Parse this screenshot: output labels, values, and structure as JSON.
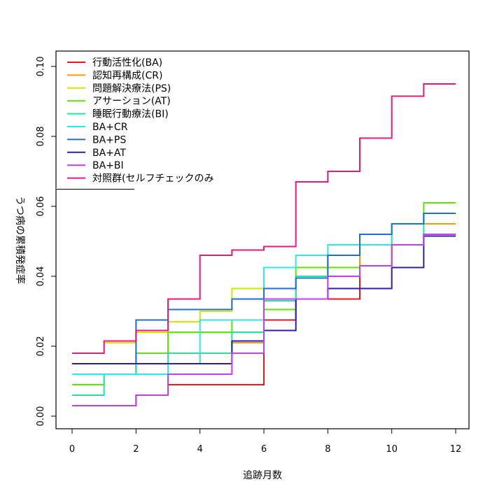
{
  "chart_data": {
    "type": "line",
    "step": true,
    "xlabel": "追跡月数",
    "ylabel": "うつ病の累積発症率",
    "xlim": [
      0,
      12
    ],
    "ylim": [
      0,
      0.1
    ],
    "xticks": [
      0,
      2,
      4,
      6,
      8,
      10,
      12
    ],
    "yticks": [
      "0.00",
      "0.02",
      "0.04",
      "0.06",
      "0.08",
      "0.10"
    ],
    "legend_position": "top-left",
    "x": [
      0,
      1,
      2,
      3,
      4,
      5,
      6,
      7,
      8,
      9,
      10,
      11,
      12
    ],
    "series": [
      {
        "name": "行動活性化(BA)",
        "color": "#e31a1c",
        "values": [
          0.003,
          0.003,
          0.006,
          0.009,
          0.009,
          0.009,
          0.0275,
          0.0335,
          0.0335,
          0.043,
          0.049,
          0.052,
          0.052
        ]
      },
      {
        "name": "認知再構成(CR)",
        "color": "#f39c12",
        "values": [
          0.012,
          0.012,
          0.015,
          0.015,
          0.018,
          0.021,
          0.0305,
          0.0395,
          0.04,
          0.052,
          0.055,
          0.055,
          0.055
        ]
      },
      {
        "name": "問題解決療法(PS)",
        "color": "#d4e600",
        "values": [
          0.018,
          0.021,
          0.024,
          0.027,
          0.03,
          0.0365,
          0.0365,
          0.04,
          0.046,
          0.052,
          0.055,
          0.058,
          0.058
        ]
      },
      {
        "name": "アサーション(AT)",
        "color": "#5ce600",
        "values": [
          0.009,
          0.012,
          0.018,
          0.024,
          0.024,
          0.0275,
          0.0305,
          0.0425,
          0.0425,
          0.043,
          0.049,
          0.061,
          0.061
        ]
      },
      {
        "name": "睡眠行動療法(BI)",
        "color": "#1de69a",
        "values": [
          0.006,
          0.012,
          0.015,
          0.018,
          0.018,
          0.024,
          0.033,
          0.04,
          0.046,
          0.049,
          0.055,
          0.058,
          0.058
        ]
      },
      {
        "name": "BA+CR",
        "color": "#2ee8e8",
        "values": [
          0.012,
          0.012,
          0.012,
          0.015,
          0.0275,
          0.0275,
          0.0425,
          0.046,
          0.049,
          0.049,
          0.049,
          0.058,
          0.058
        ]
      },
      {
        "name": "BA+PS",
        "color": "#1f6fd6",
        "values": [
          0.015,
          0.015,
          0.0275,
          0.0305,
          0.0305,
          0.0335,
          0.0365,
          0.0395,
          0.046,
          0.052,
          0.055,
          0.058,
          0.058
        ]
      },
      {
        "name": "BA+AT",
        "color": "#2a1fa8",
        "values": [
          0.015,
          0.015,
          0.015,
          0.015,
          0.015,
          0.0215,
          0.0245,
          0.0335,
          0.0365,
          0.0365,
          0.0425,
          0.0515,
          0.0515
        ]
      },
      {
        "name": "BA+BI",
        "color": "#c040ee",
        "values": [
          0.003,
          0.003,
          0.006,
          0.012,
          0.012,
          0.018,
          0.0335,
          0.0335,
          0.04,
          0.043,
          0.049,
          0.052,
          0.052
        ]
      },
      {
        "name": "対照群(セルフチェックのみ",
        "color": "#e8197a",
        "values": [
          0.018,
          0.0215,
          0.0245,
          0.0335,
          0.046,
          0.0475,
          0.0485,
          0.067,
          0.07,
          0.0795,
          0.0915,
          0.095,
          0.095
        ]
      }
    ]
  }
}
